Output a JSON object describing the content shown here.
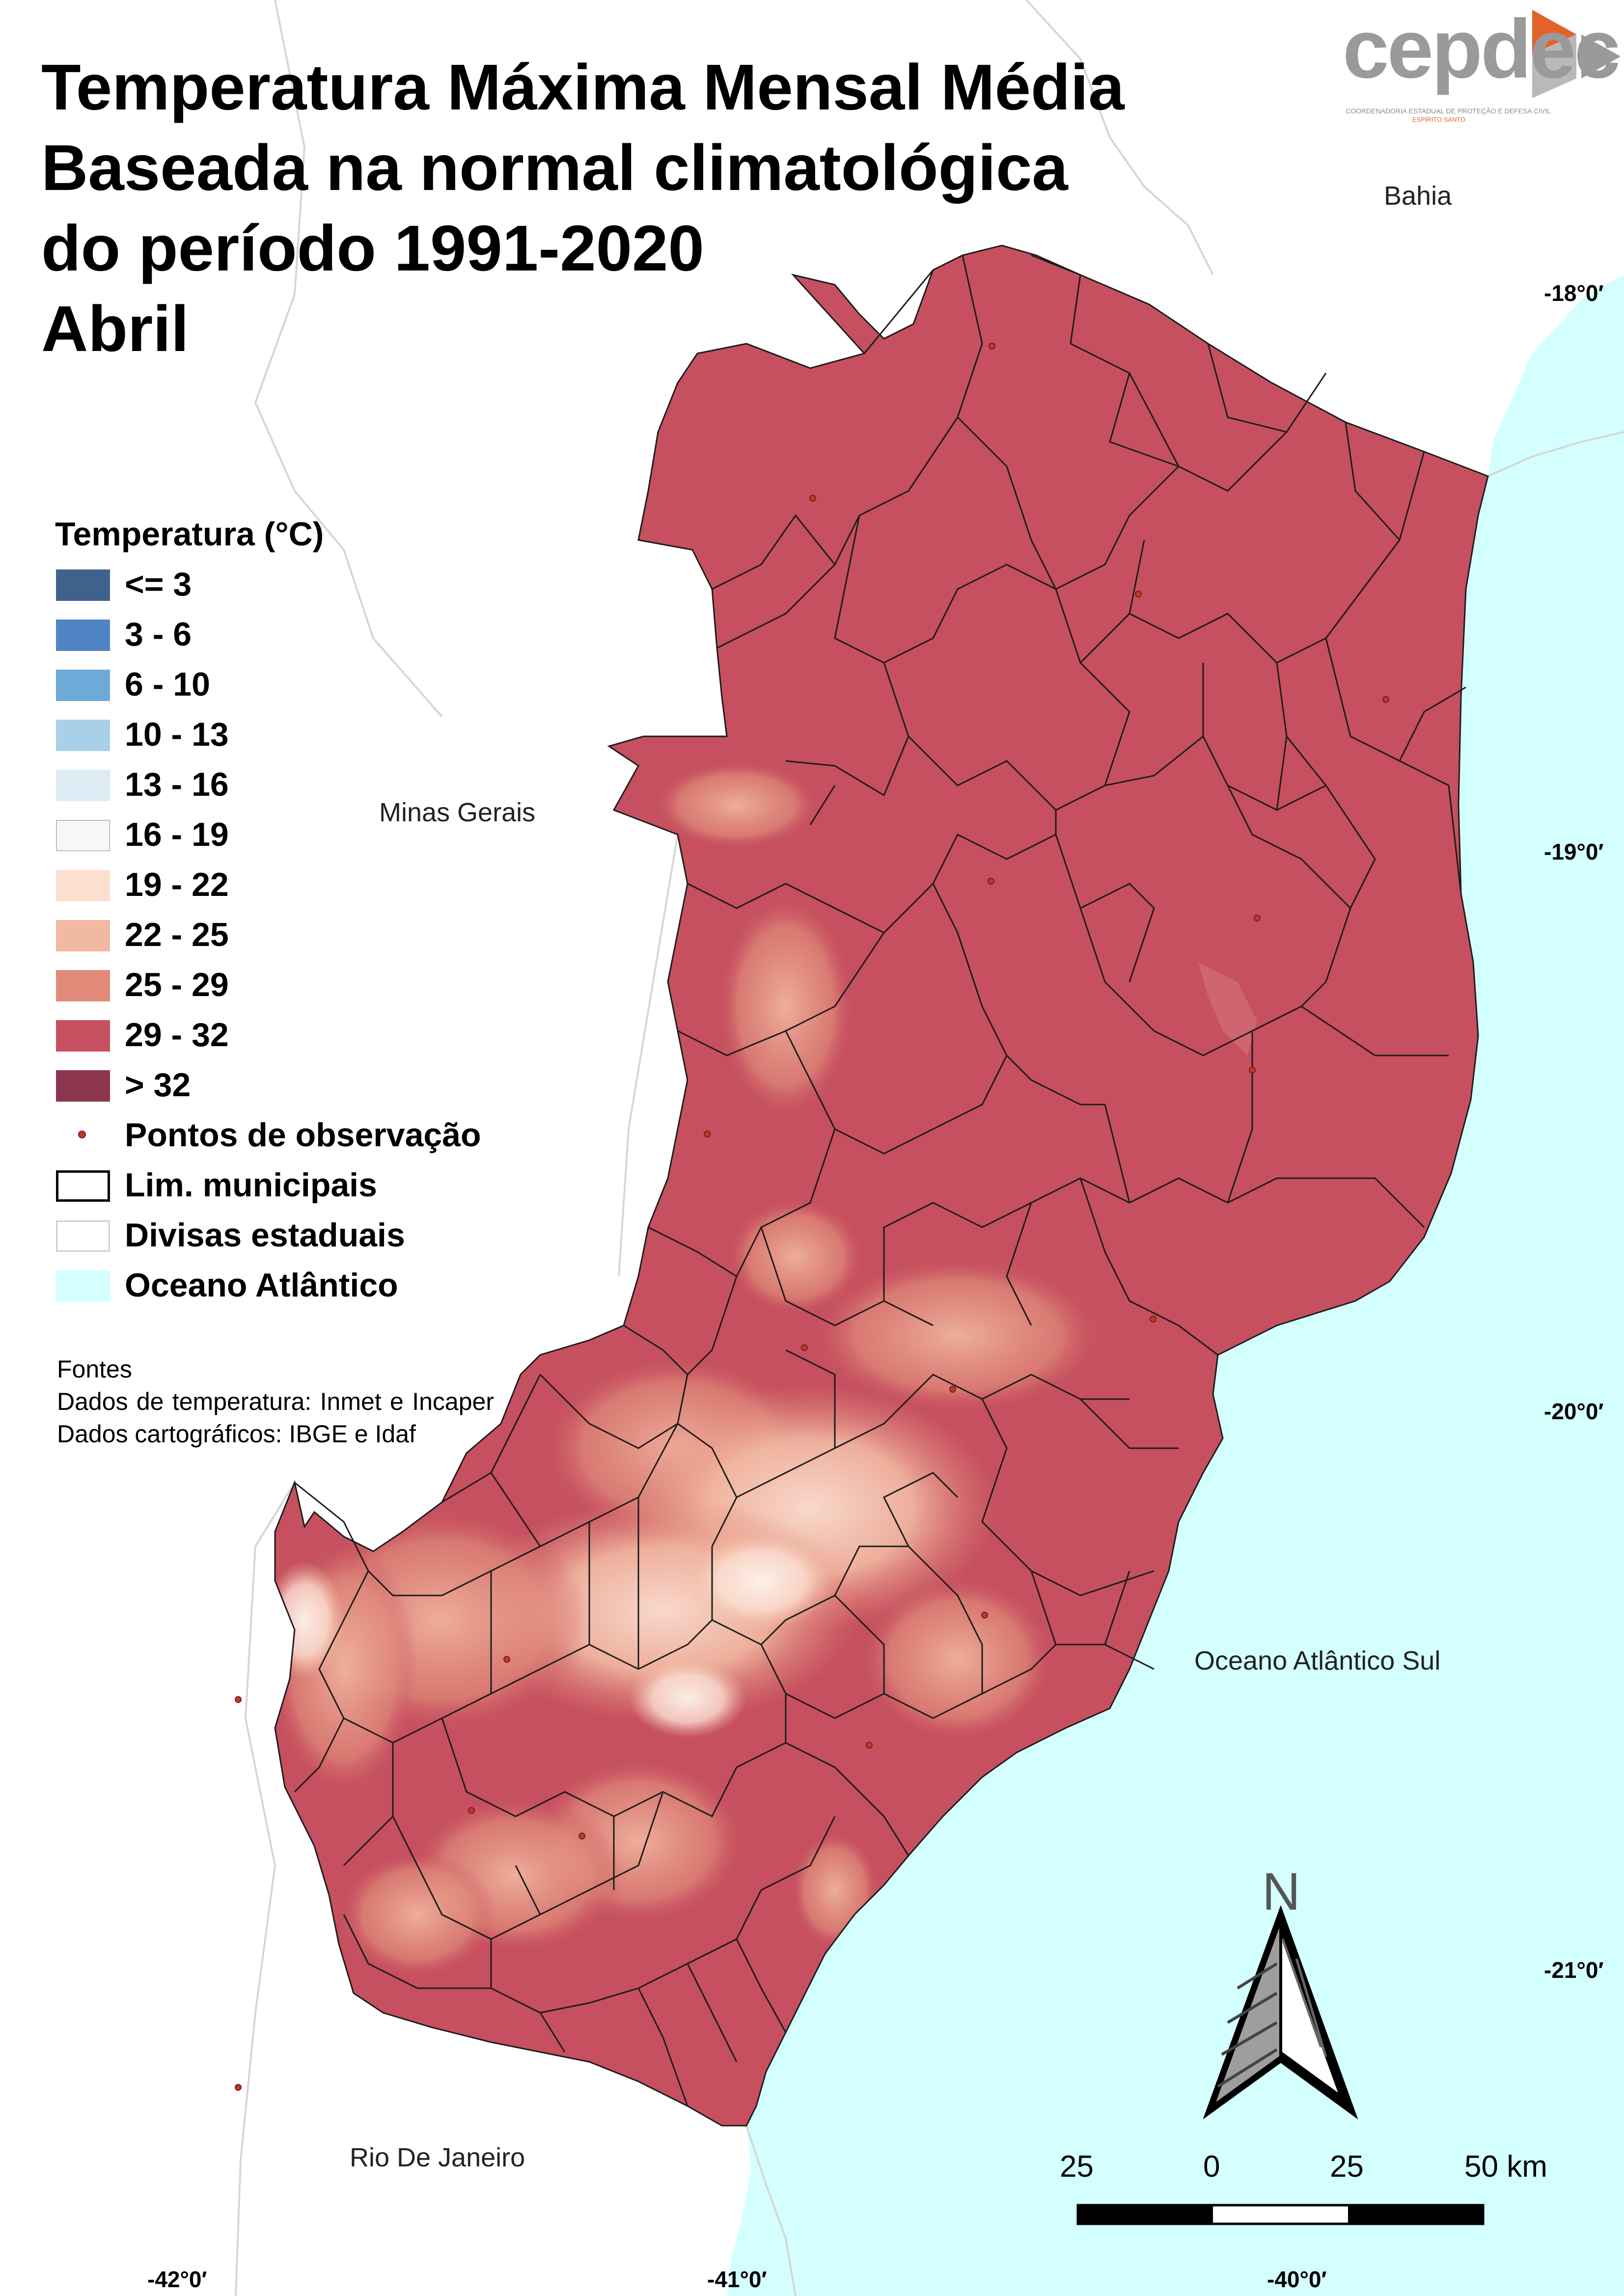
{
  "title": {
    "line1": "Temperatura Máxima Mensal Média",
    "line2": "Baseada na normal climatológica",
    "line3": "do período 1991-2020",
    "line4": "Abril"
  },
  "logo": {
    "name": "cepdec",
    "subtitle": "COORDENADORIA ESTADUAL DE PROTEÇÃO E DEFESA CIVIL",
    "state": "ESPÍRITO SANTO",
    "gray": "#9a9a9a",
    "orange": "#e4622a"
  },
  "legend": {
    "title": "Temperatura (°C)",
    "classes": [
      {
        "label": "<= 3",
        "color": "#3f628d"
      },
      {
        "label": "3 - 6",
        "color": "#4f85c4"
      },
      {
        "label": "6 - 10",
        "color": "#6daad7"
      },
      {
        "label": "10 - 13",
        "color": "#a9d0e9"
      },
      {
        "label": "13 - 16",
        "color": "#dcebf4"
      },
      {
        "label": "16 - 19",
        "color": "#f7f7f7"
      },
      {
        "label": "19 - 22",
        "color": "#fbe0d2"
      },
      {
        "label": "22 - 25",
        "color": "#f2b9a2"
      },
      {
        "label": "25 - 29",
        "color": "#e08a7a"
      },
      {
        "label": "29 - 32",
        "color": "#c6505f"
      },
      {
        "label": "> 32",
        "color": "#8c3650"
      }
    ],
    "points_label": "Pontos de observação",
    "municipal_label": "Lim. municipais",
    "state_label": "Divisas estaduais",
    "ocean_label": "Oceano Atlântico",
    "ocean_color": "#d4ffff"
  },
  "sources": {
    "heading": "Fontes",
    "temperature": "Dados de temperatura: Inmet e Incaper",
    "cartographic": "Dados cartográficos: IBGE e Idaf"
  },
  "places": {
    "bahia": "Bahia",
    "minas": "Minas Gerais",
    "rio": "Rio De Janeiro",
    "ocean": "Oceano Atlântico Sul"
  },
  "coordinates": {
    "lat": [
      "-18°0′",
      "-19°0′",
      "-20°0′",
      "-21°0′"
    ],
    "lon": [
      "-42°0′",
      "-41°0′",
      "-40°0′"
    ]
  },
  "north_arrow": {
    "label": "N"
  },
  "scale_bar": {
    "labels": [
      "25",
      "0",
      "25",
      "50 km"
    ]
  }
}
